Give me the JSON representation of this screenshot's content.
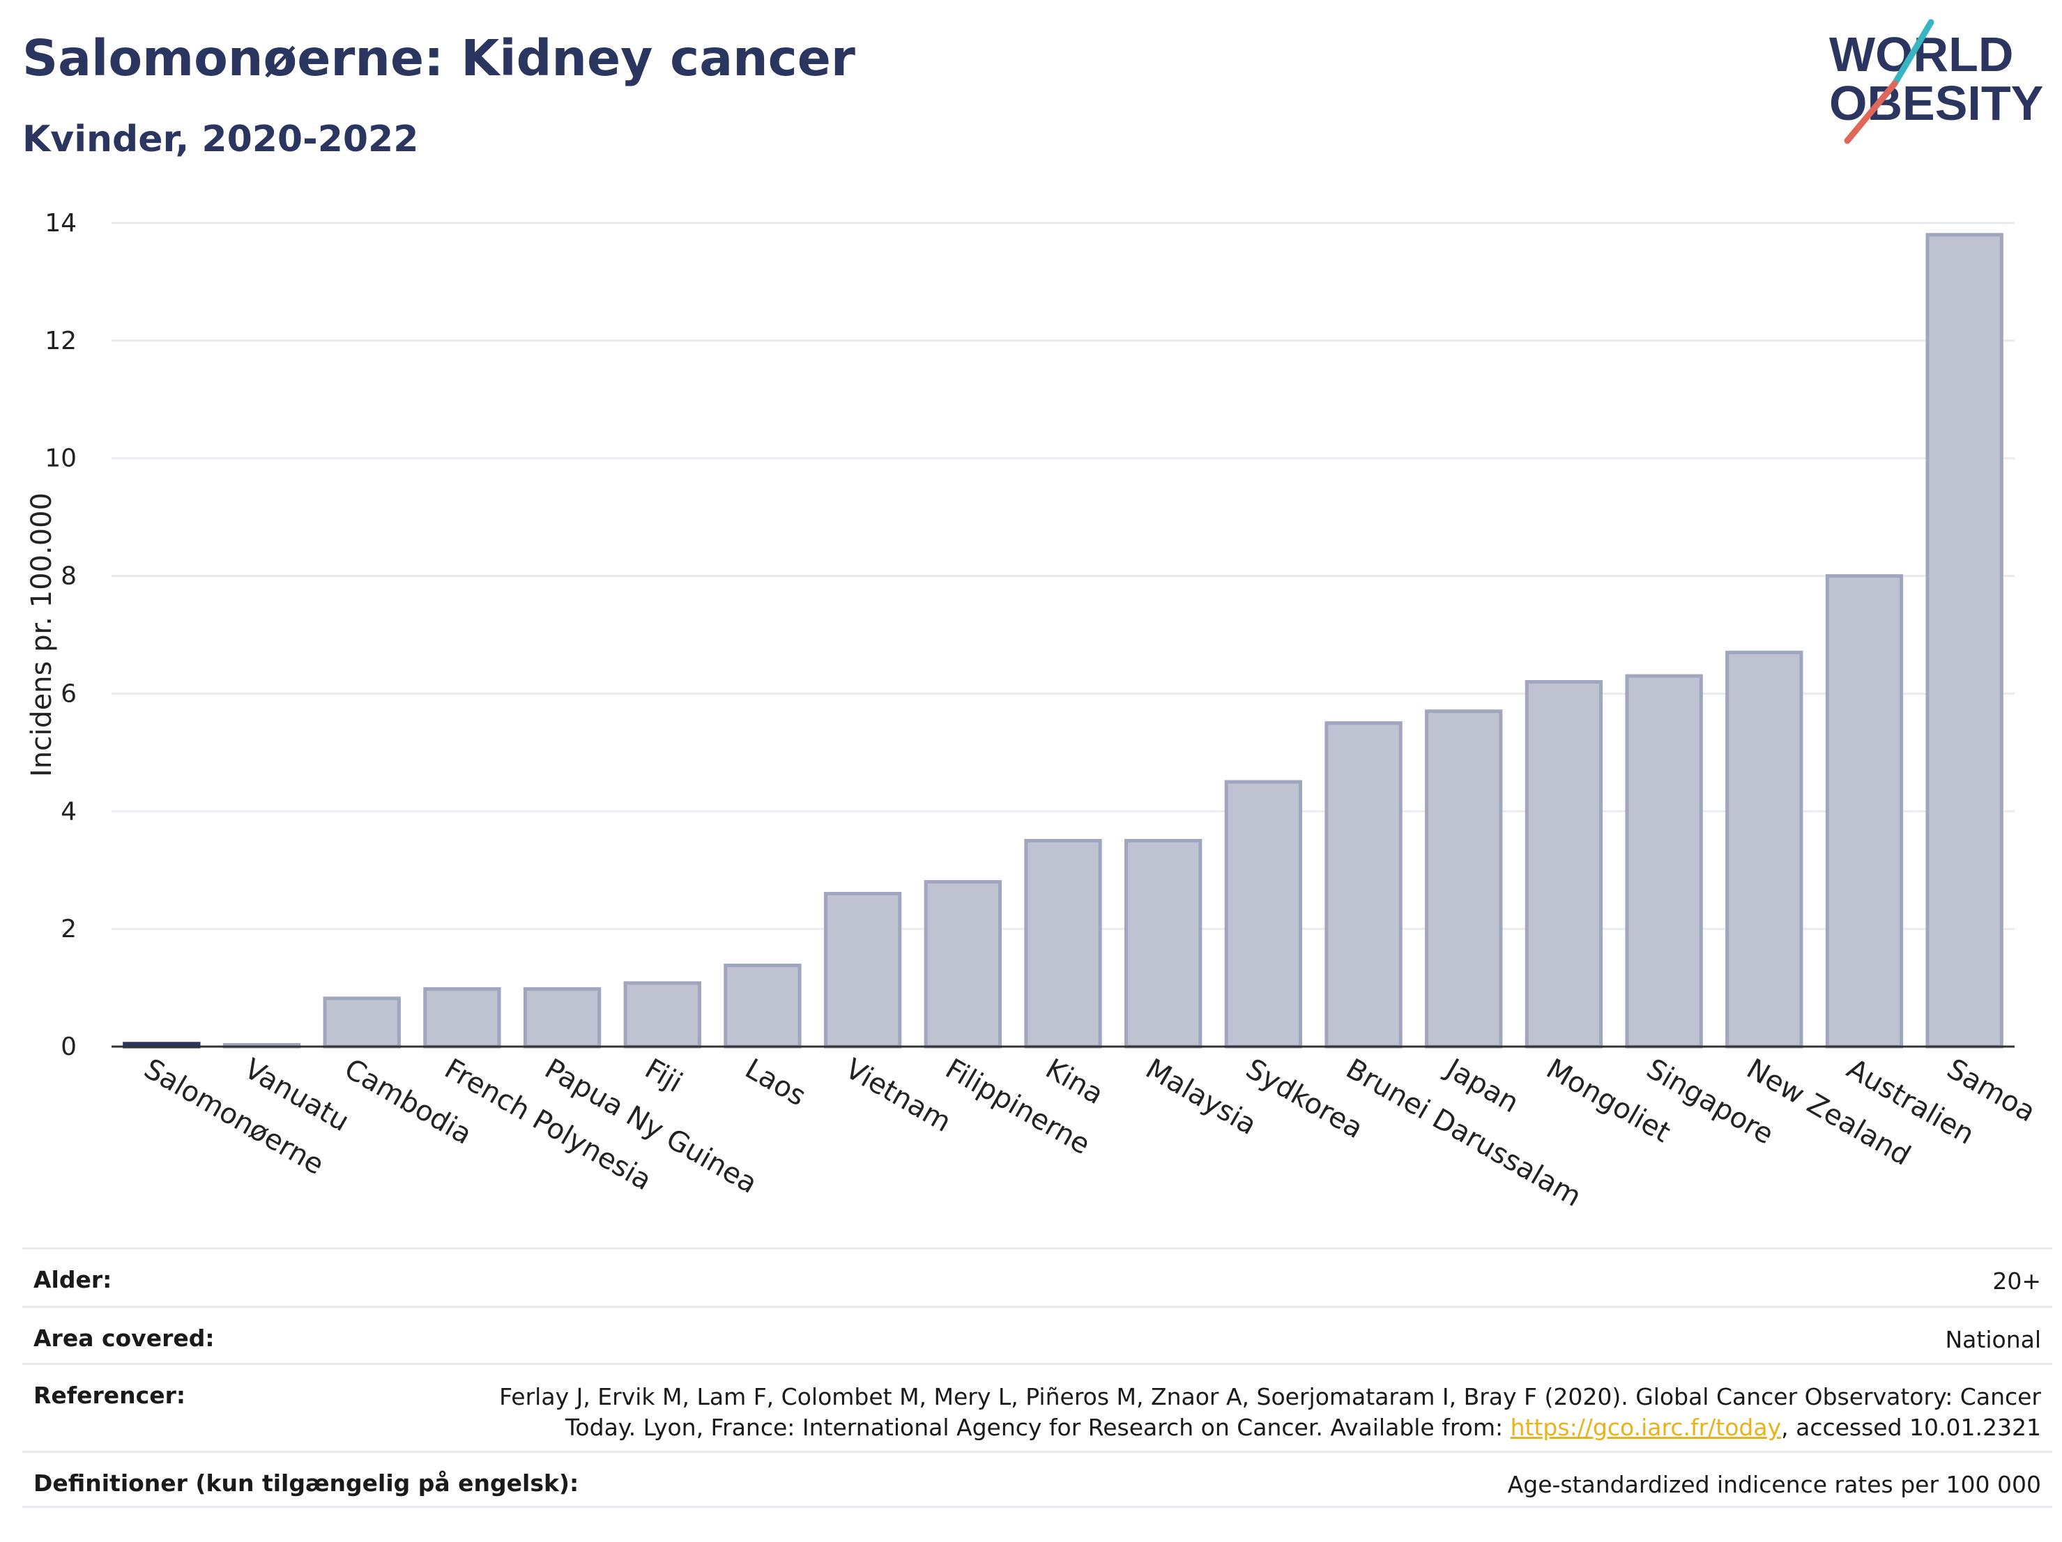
{
  "header": {
    "title": "Salomonøerne: Kidney cancer",
    "subtitle": "Kvinder, 2020-2022"
  },
  "logo": {
    "line1": "WORLD",
    "line2": "OBESITY",
    "colors": {
      "navy": "#2a3560",
      "teal": "#39b5c2",
      "coral": "#e0685a"
    }
  },
  "chart_data": {
    "type": "bar",
    "ylabel": "Incidens pr. 100.000",
    "ylim": [
      0,
      14
    ],
    "yticks": [
      0,
      2,
      4,
      6,
      8,
      10,
      12,
      14
    ],
    "grid": true,
    "categories": [
      "Salomonøerne",
      "Vanuatu",
      "Cambodia",
      "French Polynesia",
      "Papua Ny Guinea",
      "Fiji",
      "Laos",
      "Vietnam",
      "Filippinerne",
      "Kina",
      "Malaysia",
      "Sydkorea",
      "Brunei Darussalam",
      "Japan",
      "Mongoliet",
      "Singapore",
      "New Zealand",
      "Australien",
      "Samoa"
    ],
    "values": [
      0.05,
      0.03,
      0.82,
      0.98,
      0.98,
      1.08,
      1.38,
      2.6,
      2.8,
      3.5,
      3.5,
      4.5,
      5.5,
      5.7,
      6.2,
      6.3,
      6.7,
      8.0,
      13.8
    ],
    "highlight": "Salomonøerne",
    "colors": {
      "bar": "#bfc3d1",
      "bar_edge": "#9fa6bd",
      "highlight": "#2a3560",
      "grid": "#e8ebef",
      "axis": "#333333"
    }
  },
  "info": [
    {
      "label": "Alder:",
      "value": "20+"
    },
    {
      "label": "Area covered:",
      "value": "National"
    },
    {
      "label": "Referencer:",
      "value_line1": "Ferlay J, Ervik M, Lam F, Colombet M, Mery L, Piñeros M, Znaor A, Soerjomataram I, Bray F (2020). Global Cancer Observatory: Cancer",
      "value_line2_pre": "Today. Lyon, France: International Agency for Research on Cancer. Available from: ",
      "link": "https://gco.iarc.fr/today",
      "value_line2_post": ", accessed 10.01.2321"
    },
    {
      "label": "Definitioner (kun tilgængelig på engelsk):",
      "value": "Age-standardized indicence rates per 100 000"
    }
  ]
}
